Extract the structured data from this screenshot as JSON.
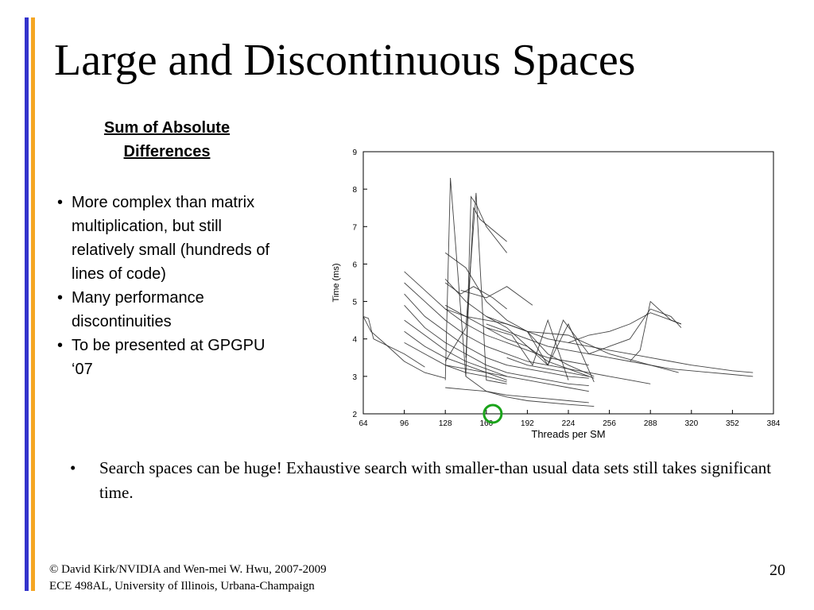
{
  "slide": {
    "title": "Large and Discontinuous Spaces",
    "subhead_line1": "Sum of Absolute",
    "subhead_line2": "Differences",
    "side_bullets": [
      "More complex than matrix multiplication, but still relatively small (hundreds of lines of code)",
      "Many performance discontinuities",
      "To be presented at GPGPU ‘07"
    ],
    "main_bullet_marker": "•",
    "main_bullet": "Search spaces can be huge!  Exhaustive search with smaller-than usual data sets still takes significant time.",
    "footer_line1": "© David Kirk/NVIDIA and Wen-mei W. Hwu, 2007-2009",
    "footer_line2": "ECE 498AL, University of Illinois, Urbana-Champaign",
    "page_number": "20",
    "colors": {
      "accent_blue": "#3333cc",
      "accent_gold": "#f5a623",
      "highlight_circle": "#1aa31a"
    }
  },
  "chart_data": {
    "type": "line",
    "xlabel": "Threads per SM",
    "ylabel": "Time (ms)",
    "xlim": [
      64,
      384
    ],
    "ylim": [
      2,
      9
    ],
    "xticks": [
      64,
      96,
      128,
      160,
      192,
      224,
      256,
      288,
      320,
      352,
      384
    ],
    "yticks": [
      2,
      3,
      4,
      5,
      6,
      7,
      8,
      9
    ],
    "grid": false,
    "legend": "none",
    "highlight": {
      "x": 165,
      "y": 2.0,
      "marker": "circle"
    },
    "series": [
      {
        "x": [
          64,
          70,
          80,
          96,
          112,
          128
        ],
        "y": [
          4.6,
          4.2,
          3.9,
          3.4,
          3.1,
          2.95
        ]
      },
      {
        "x": [
          64,
          68,
          72,
          96,
          112
        ],
        "y": [
          4.6,
          4.55,
          4.0,
          3.6,
          3.25
        ]
      },
      {
        "x": [
          128,
          132,
          144,
          160,
          176,
          192,
          224,
          244
        ],
        "y": [
          2.9,
          8.3,
          3.0,
          2.6,
          2.45,
          2.35,
          2.25,
          2.2
        ]
      },
      {
        "x": [
          128,
          144,
          152,
          160,
          176
        ],
        "y": [
          3.4,
          4.3,
          7.9,
          2.9,
          2.8
        ]
      },
      {
        "x": [
          144,
          148,
          152,
          160,
          176
        ],
        "y": [
          3.0,
          7.8,
          7.6,
          7.0,
          6.3
        ]
      },
      {
        "x": [
          144,
          150,
          155,
          176
        ],
        "y": [
          3.5,
          7.5,
          7.2,
          6.6
        ]
      },
      {
        "x": [
          128,
          144,
          160,
          176,
          192,
          208,
          224,
          244
        ],
        "y": [
          6.3,
          5.9,
          5.0,
          4.5,
          4.2,
          3.6,
          3.3,
          3.0
        ]
      },
      {
        "x": [
          128,
          144,
          160,
          176,
          192,
          208,
          224,
          244
        ],
        "y": [
          5.6,
          5.0,
          4.6,
          4.3,
          3.8,
          3.4,
          3.2,
          2.95
        ]
      },
      {
        "x": [
          128,
          160,
          176,
          192,
          208,
          224,
          244
        ],
        "y": [
          4.9,
          4.3,
          4.0,
          3.8,
          3.3,
          4.4,
          2.85
        ]
      },
      {
        "x": [
          160,
          180,
          196,
          208,
          224
        ],
        "y": [
          4.3,
          4.1,
          3.3,
          4.5,
          2.9
        ]
      },
      {
        "x": [
          128,
          144,
          160,
          176,
          192,
          224,
          256,
          288,
          310
        ],
        "y": [
          4.8,
          4.6,
          4.5,
          4.4,
          4.2,
          4.1,
          3.6,
          3.3,
          3.1
        ]
      },
      {
        "x": [
          96,
          112,
          128,
          144,
          160,
          176,
          192,
          208,
          224,
          240
        ],
        "y": [
          5.8,
          5.3,
          4.8,
          4.4,
          4.1,
          3.9,
          3.7,
          3.5,
          3.4,
          3.3
        ]
      },
      {
        "x": [
          96,
          112,
          128,
          144,
          160,
          176,
          192,
          208,
          224,
          240
        ],
        "y": [
          5.5,
          5.0,
          4.5,
          4.1,
          3.8,
          3.6,
          3.4,
          3.3,
          3.2,
          3.1
        ]
      },
      {
        "x": [
          96,
          112,
          128,
          144,
          160,
          176,
          192,
          208,
          224,
          240
        ],
        "y": [
          5.2,
          4.6,
          4.2,
          3.8,
          3.5,
          3.3,
          3.2,
          3.1,
          3.0,
          2.95
        ]
      },
      {
        "x": [
          96,
          112,
          128,
          144,
          160,
          176,
          192,
          208,
          224,
          240
        ],
        "y": [
          4.9,
          4.3,
          3.9,
          3.6,
          3.3,
          3.1,
          3.0,
          2.9,
          2.8,
          2.75
        ]
      },
      {
        "x": [
          96,
          112,
          128,
          144,
          160,
          176
        ],
        "y": [
          4.5,
          4.1,
          3.7,
          3.4,
          3.2,
          3.0
        ]
      },
      {
        "x": [
          96,
          112,
          128,
          144,
          160,
          176
        ],
        "y": [
          4.2,
          3.8,
          3.5,
          3.3,
          3.1,
          2.9
        ]
      },
      {
        "x": [
          96,
          112,
          128,
          144,
          160,
          176
        ],
        "y": [
          3.9,
          3.6,
          3.3,
          3.1,
          3.0,
          2.85
        ]
      },
      {
        "x": [
          160,
          176,
          192,
          208,
          224,
          240,
          256,
          272,
          288,
          304,
          320,
          352,
          368
        ],
        "y": [
          4.4,
          4.2,
          4.0,
          3.8,
          3.7,
          3.6,
          3.5,
          3.4,
          3.3,
          3.2,
          3.15,
          3.05,
          3.0
        ]
      },
      {
        "x": [
          160,
          176,
          192,
          208,
          224,
          240,
          256,
          272,
          288,
          304,
          320,
          352,
          368
        ],
        "y": [
          4.6,
          4.4,
          4.2,
          4.0,
          3.9,
          3.8,
          3.7,
          3.6,
          3.5,
          3.4,
          3.3,
          3.15,
          3.1
        ]
      },
      {
        "x": [
          192,
          208,
          220,
          240,
          256,
          272,
          288,
          304,
          312
        ],
        "y": [
          4.2,
          3.3,
          4.5,
          3.6,
          3.8,
          4.0,
          4.8,
          4.6,
          4.3
        ]
      },
      {
        "x": [
          224,
          240,
          256,
          272,
          288,
          304,
          312
        ],
        "y": [
          3.9,
          4.1,
          4.2,
          4.4,
          4.7,
          4.5,
          4.4
        ]
      },
      {
        "x": [
          272,
          280,
          288,
          304,
          312
        ],
        "y": [
          3.4,
          3.7,
          5.0,
          4.5,
          4.4
        ]
      },
      {
        "x": [
          240,
          256,
          272,
          288
        ],
        "y": [
          3.1,
          3.0,
          2.9,
          2.8
        ]
      },
      {
        "x": [
          128,
          144,
          160,
          176,
          192,
          208,
          224,
          240
        ],
        "y": [
          3.3,
          3.2,
          3.1,
          3.0,
          2.9,
          2.8,
          2.7,
          2.6
        ]
      },
      {
        "x": [
          128,
          144,
          160,
          176,
          192,
          208,
          224,
          240
        ],
        "y": [
          2.7,
          2.65,
          2.6,
          2.5,
          2.45,
          2.4,
          2.35,
          2.3
        ]
      },
      {
        "x": [
          176,
          192,
          208,
          224,
          240
        ],
        "y": [
          3.5,
          3.3,
          3.2,
          3.1,
          3.0
        ]
      },
      {
        "x": [
          128,
          140,
          150,
          165,
          176
        ],
        "y": [
          5.5,
          5.2,
          5.4,
          5.1,
          4.8
        ]
      },
      {
        "x": [
          140,
          160,
          176,
          196
        ],
        "y": [
          5.3,
          5.1,
          5.4,
          4.9
        ]
      }
    ]
  }
}
